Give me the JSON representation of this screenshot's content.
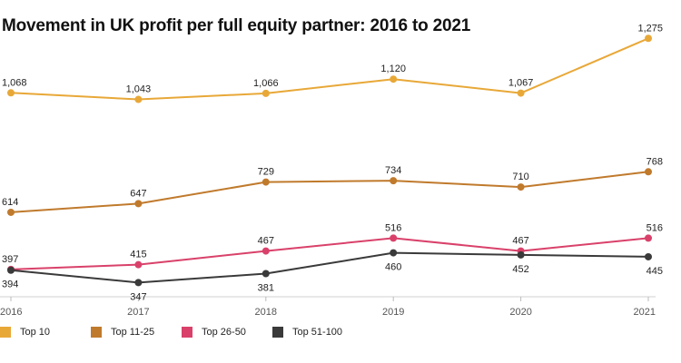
{
  "chart_data": {
    "type": "line",
    "title": "Movement in UK profit per full equity partner: 2016 to 2021",
    "x": [
      "2016",
      "2017",
      "2018",
      "2019",
      "2020",
      "2021"
    ],
    "ylim": [
      300,
      1300
    ],
    "grid": false,
    "legend_placement": "bottom-left",
    "series": [
      {
        "name": "Top 10",
        "color": "#E8A838",
        "values": [
          1068,
          1043,
          1066,
          1120,
          1067,
          1275
        ],
        "labels": [
          "1,068",
          "1,043",
          "1,066",
          "1,120",
          "1,067",
          "1,275"
        ],
        "label_pos": "above"
      },
      {
        "name": "Top 11-25",
        "color": "#C07A2C",
        "values": [
          614,
          647,
          729,
          734,
          710,
          768
        ],
        "labels": [
          "614",
          "647",
          "729",
          "734",
          "710",
          "768"
        ],
        "label_pos": "above"
      },
      {
        "name": "Top 26-50",
        "color": "#D9416A",
        "values": [
          397,
          415,
          467,
          516,
          467,
          516
        ],
        "labels": [
          "397",
          "415",
          "467",
          "516",
          "467",
          "516"
        ],
        "label_pos": "above"
      },
      {
        "name": "Top 51-100",
        "color": "#3A3A3A",
        "values": [
          394,
          347,
          381,
          460,
          452,
          445
        ],
        "labels": [
          "394",
          "347",
          "381",
          "460",
          "452",
          "445"
        ],
        "label_pos": "below"
      }
    ]
  }
}
